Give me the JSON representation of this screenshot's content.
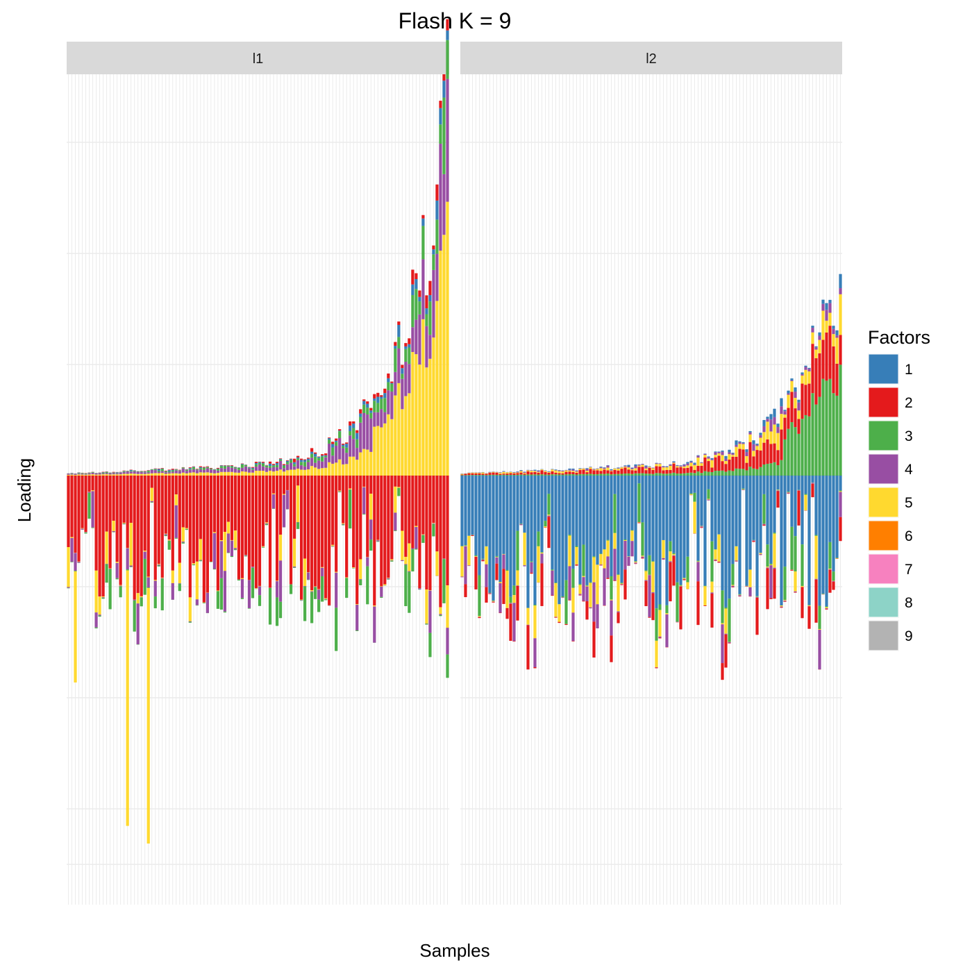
{
  "chart_data": {
    "type": "bar",
    "stacked": true,
    "diverging": true,
    "title": "Flash K = 9",
    "xlabel": "Samples",
    "ylabel": "Loading",
    "x_tick_labels_shown": false,
    "y_tick_labels_shown": false,
    "grid": true,
    "ylim": [
      -3.5,
      3.25
    ],
    "facets": [
      {
        "label": "l1",
        "dominant_negative_factor": "2",
        "dominant_positive_factor": "5",
        "n_samples": 110,
        "summary": {
          "min_total": -3.1,
          "max_total": 2.85,
          "typical_negative_range": [
            -0.4,
            -1.2
          ]
        }
      },
      {
        "label": "l2",
        "dominant_negative_factor": "1",
        "dominant_positive_factor": "3",
        "n_samples": 110,
        "summary": {
          "min_total": -1.5,
          "max_total": 1.6,
          "typical_negative_range": [
            -0.4,
            -1.2
          ]
        }
      }
    ],
    "legend": {
      "title": "Factors",
      "placement": "right",
      "entries": [
        {
          "label": "1",
          "color": "#377EB8"
        },
        {
          "label": "2",
          "color": "#E41A1C"
        },
        {
          "label": "3",
          "color": "#4DAF4A"
        },
        {
          "label": "4",
          "color": "#984EA3"
        },
        {
          "label": "5",
          "color": "#FFD92F"
        },
        {
          "label": "6",
          "color": "#FF7F00"
        },
        {
          "label": "7",
          "color": "#F781BF"
        },
        {
          "label": "8",
          "color": "#8DD3C7"
        },
        {
          "label": "9",
          "color": "#B3B3B3"
        }
      ]
    }
  }
}
